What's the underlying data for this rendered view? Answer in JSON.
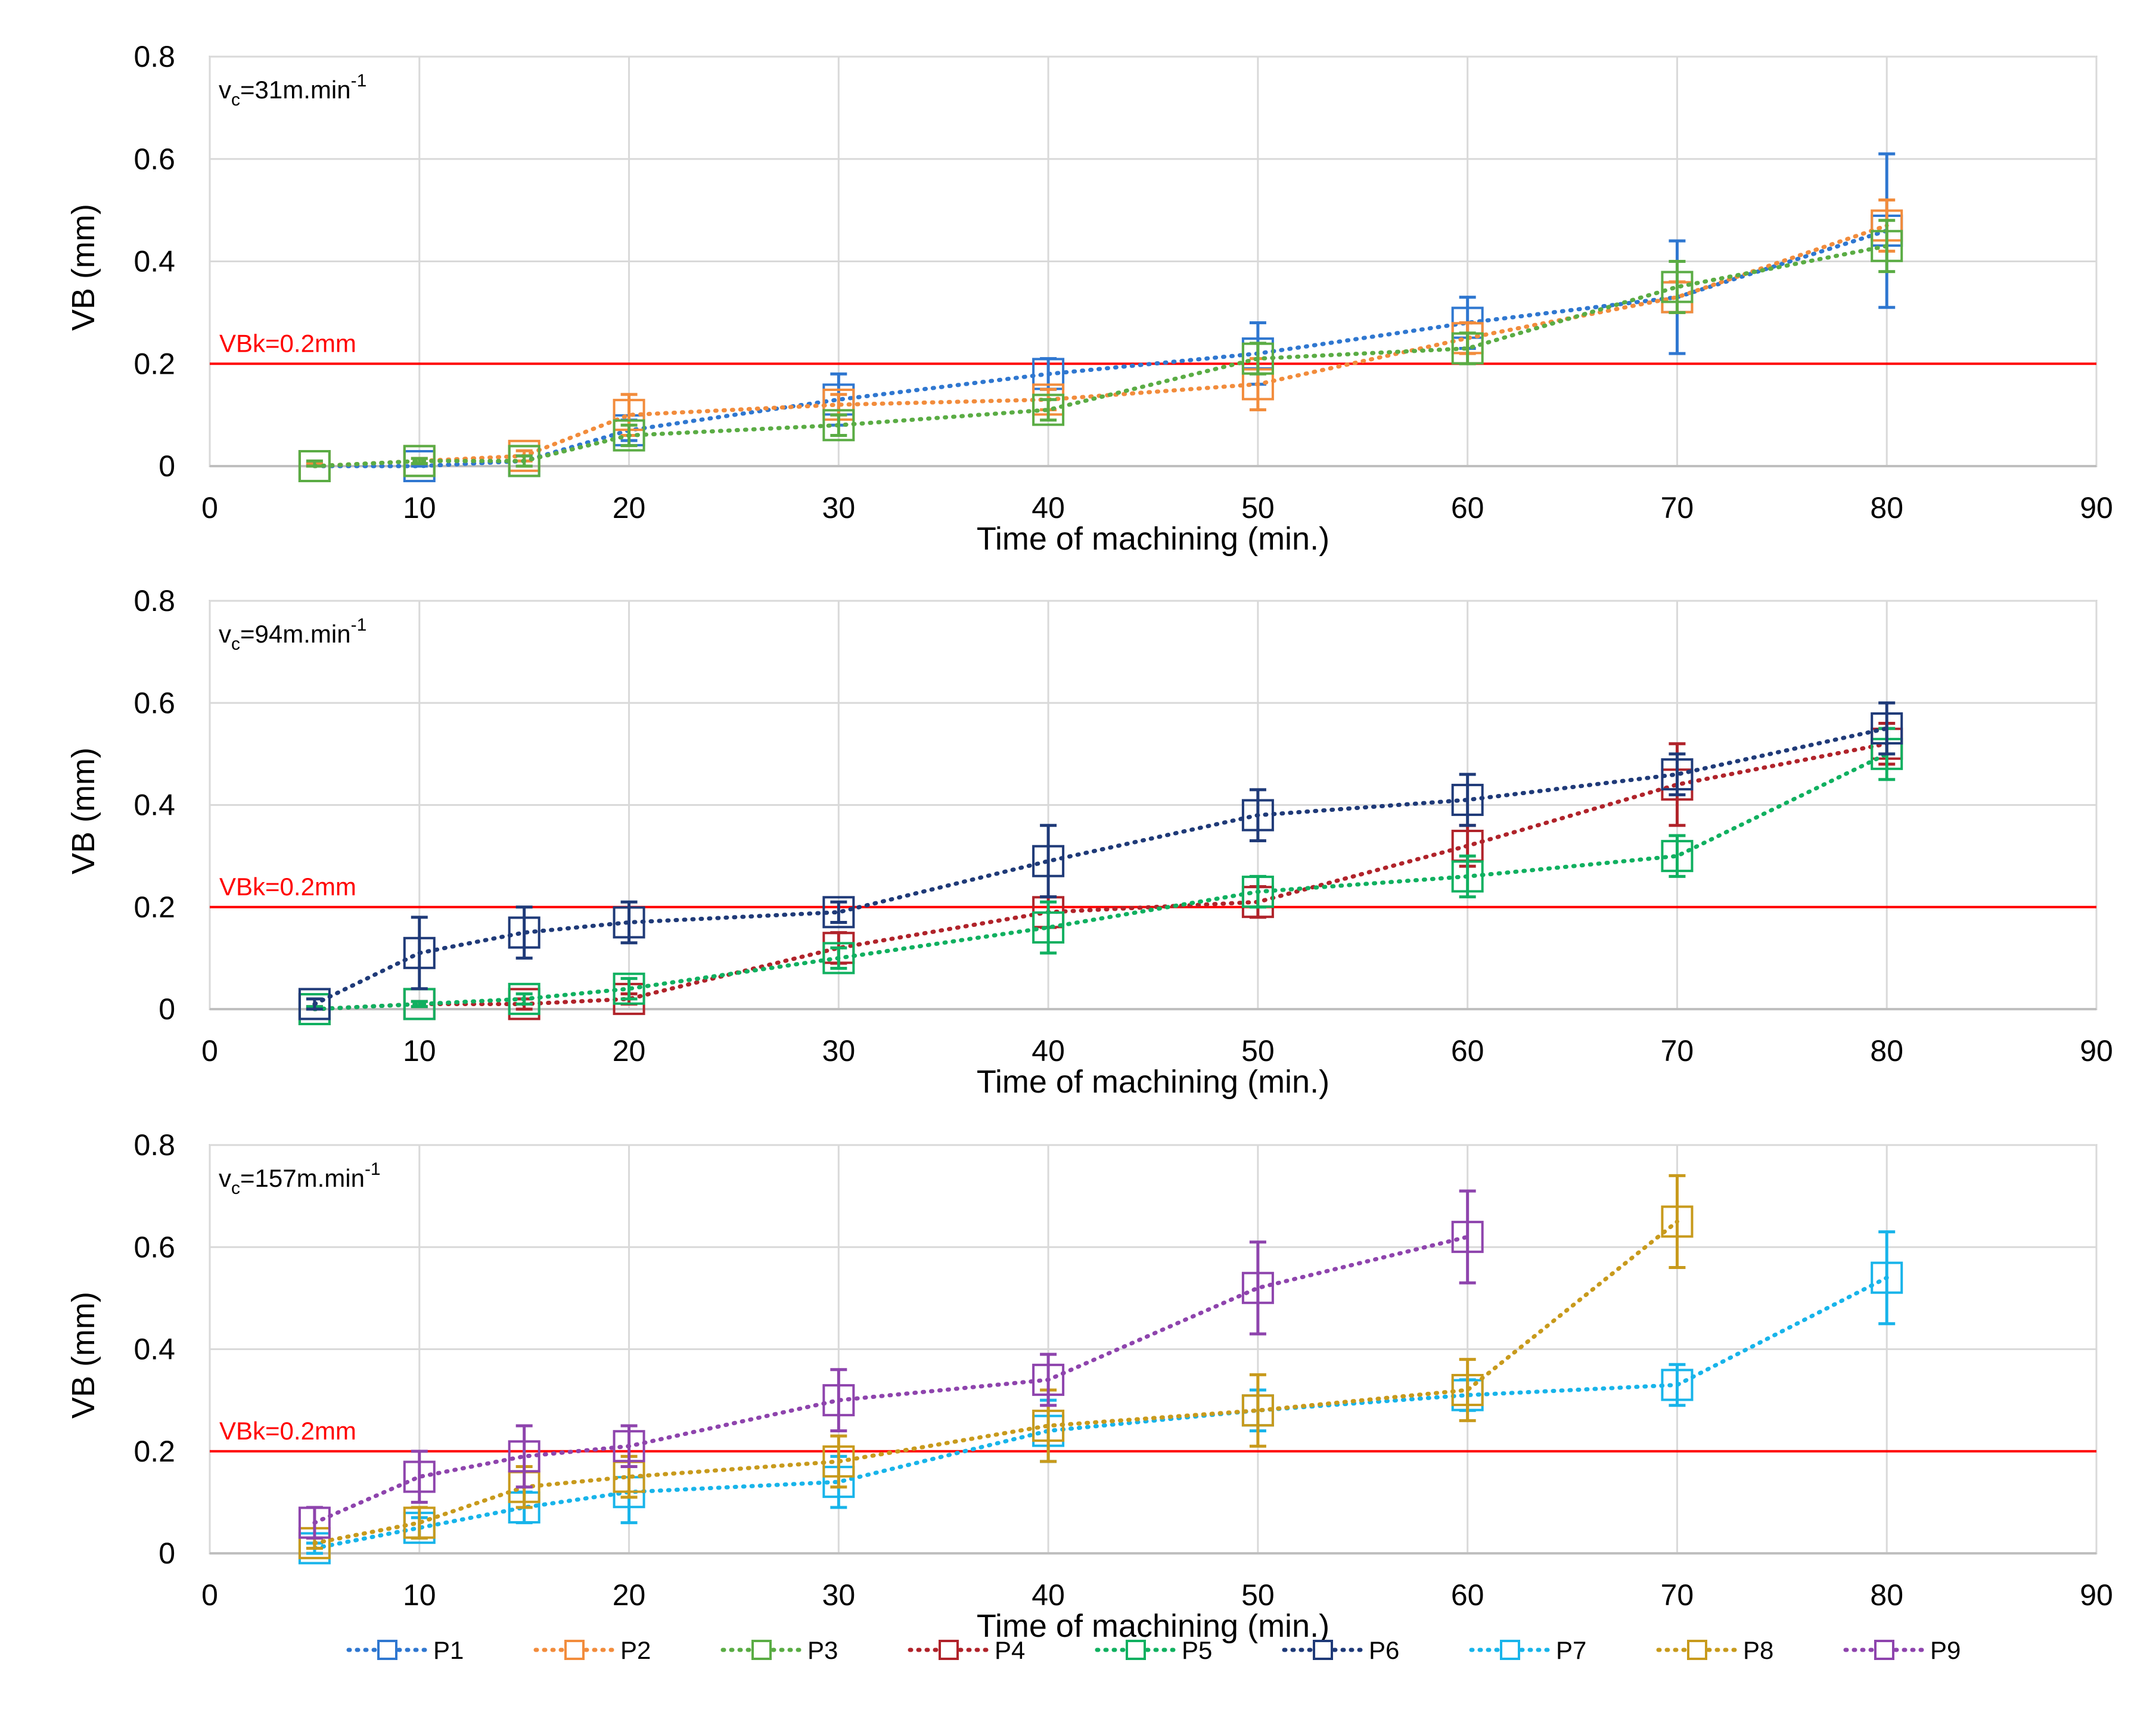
{
  "chart_data": [
    {
      "type": "line",
      "speed_label": "v",
      "speed_sub": "c",
      "speed_value": "=31m.min",
      "speed_sup": "-1",
      "xlabel": "Time of machining (min.)",
      "ylabel": "VB (mm)",
      "xlim": [
        0,
        90
      ],
      "ylim": [
        0,
        0.8
      ],
      "xticks": [
        "0",
        "10",
        "20",
        "30",
        "40",
        "50",
        "60",
        "70",
        "80",
        "90"
      ],
      "yticks": [
        "0",
        "0.2",
        "0.4",
        "0.6",
        "0.8"
      ],
      "threshold": {
        "value": 0.2,
        "label": "VBk=0.2mm",
        "color": "#ff0000"
      },
      "series": [
        {
          "name": "P1",
          "color": "#2f77d0",
          "x": [
            5,
            10,
            15,
            20,
            30,
            40,
            50,
            60,
            70,
            80
          ],
          "values": [
            0.0,
            0.0,
            0.01,
            0.07,
            0.13,
            0.18,
            0.22,
            0.28,
            0.33,
            0.46
          ],
          "err": [
            0.005,
            0.005,
            0.01,
            0.02,
            0.05,
            0.03,
            0.06,
            0.05,
            0.11,
            0.15
          ]
        },
        {
          "name": "P2",
          "color": "#f28c3c",
          "x": [
            5,
            10,
            15,
            20,
            30,
            40,
            50,
            60,
            70,
            80
          ],
          "values": [
            0.0,
            0.01,
            0.02,
            0.1,
            0.12,
            0.13,
            0.16,
            0.25,
            0.33,
            0.47
          ],
          "err": [
            0.005,
            0.005,
            0.01,
            0.04,
            0.02,
            0.02,
            0.05,
            0.03,
            0.03,
            0.05
          ]
        },
        {
          "name": "P3",
          "color": "#5aac44",
          "x": [
            5,
            10,
            15,
            20,
            30,
            40,
            50,
            60,
            70,
            80
          ],
          "values": [
            0.0,
            0.01,
            0.01,
            0.06,
            0.08,
            0.11,
            0.21,
            0.23,
            0.35,
            0.43
          ],
          "err": [
            0.01,
            0.005,
            0.01,
            0.02,
            0.02,
            0.02,
            0.03,
            0.03,
            0.05,
            0.05
          ]
        }
      ]
    },
    {
      "type": "line",
      "speed_label": "v",
      "speed_sub": "c",
      "speed_value": "=94m.min",
      "speed_sup": "-1",
      "xlabel": "Time of machining (min.)",
      "ylabel": "VB (mm)",
      "xlim": [
        0,
        90
      ],
      "ylim": [
        0,
        0.8
      ],
      "xticks": [
        "0",
        "10",
        "20",
        "30",
        "40",
        "50",
        "60",
        "70",
        "80",
        "90"
      ],
      "yticks": [
        "0",
        "0.2",
        "0.4",
        "0.6",
        "0.8"
      ],
      "threshold": {
        "value": 0.2,
        "label": "VBk=0.2mm",
        "color": "#ff0000"
      },
      "series": [
        {
          "name": "P4",
          "color": "#b0232a",
          "x": [
            5,
            10,
            15,
            20,
            30,
            40,
            50,
            60,
            70,
            80
          ],
          "values": [
            0.0,
            0.01,
            0.01,
            0.02,
            0.12,
            0.19,
            0.21,
            0.32,
            0.44,
            0.52
          ],
          "err": [
            0.005,
            0.005,
            0.01,
            0.01,
            0.03,
            0.03,
            0.03,
            0.04,
            0.08,
            0.04
          ]
        },
        {
          "name": "P5",
          "color": "#10b060",
          "x": [
            5,
            10,
            15,
            20,
            30,
            40,
            50,
            60,
            70,
            80
          ],
          "values": [
            0.0,
            0.01,
            0.02,
            0.04,
            0.1,
            0.16,
            0.23,
            0.26,
            0.3,
            0.5
          ],
          "err": [
            0.005,
            0.005,
            0.01,
            0.02,
            0.02,
            0.05,
            0.03,
            0.04,
            0.04,
            0.05
          ]
        },
        {
          "name": "P6",
          "color": "#1f3a78",
          "x": [
            5,
            10,
            15,
            20,
            30,
            40,
            50,
            60,
            70,
            80
          ],
          "values": [
            0.01,
            0.11,
            0.15,
            0.17,
            0.19,
            0.29,
            0.38,
            0.41,
            0.46,
            0.55
          ],
          "err": [
            0.01,
            0.07,
            0.05,
            0.04,
            0.02,
            0.07,
            0.05,
            0.05,
            0.04,
            0.05
          ]
        }
      ]
    },
    {
      "type": "line",
      "speed_label": "v",
      "speed_sub": "c",
      "speed_value": "=157m.min",
      "speed_sup": "-1",
      "xlabel": "Time of machining (min.)",
      "ylabel": "VB (mm)",
      "xlim": [
        0,
        90
      ],
      "ylim": [
        0,
        0.8
      ],
      "xticks": [
        "0",
        "10",
        "20",
        "30",
        "40",
        "50",
        "60",
        "70",
        "80",
        "90"
      ],
      "yticks": [
        "0",
        "0.2",
        "0.4",
        "0.6",
        "0.8"
      ],
      "threshold": {
        "value": 0.2,
        "label": "VBk=0.2mm",
        "color": "#ff0000"
      },
      "series": [
        {
          "name": "P7",
          "color": "#18b4ea",
          "x": [
            5,
            10,
            15,
            20,
            30,
            40,
            50,
            60,
            70,
            80
          ],
          "values": [
            0.01,
            0.05,
            0.09,
            0.12,
            0.14,
            0.24,
            0.28,
            0.31,
            0.33,
            0.54
          ],
          "err": [
            0.01,
            0.02,
            0.03,
            0.06,
            0.05,
            0.06,
            0.04,
            0.03,
            0.04,
            0.09
          ]
        },
        {
          "name": "P8",
          "color": "#c89a1c",
          "x": [
            5,
            10,
            15,
            20,
            30,
            40,
            50,
            60,
            70
          ],
          "values": [
            0.02,
            0.06,
            0.13,
            0.15,
            0.18,
            0.25,
            0.28,
            0.32,
            0.65
          ],
          "err": [
            0.01,
            0.03,
            0.04,
            0.04,
            0.05,
            0.07,
            0.07,
            0.06,
            0.09
          ]
        },
        {
          "name": "P9",
          "color": "#8e44ad",
          "x": [
            5,
            10,
            15,
            20,
            30,
            40,
            50,
            60
          ],
          "values": [
            0.06,
            0.15,
            0.19,
            0.21,
            0.3,
            0.34,
            0.52,
            0.62
          ],
          "err": [
            0.03,
            0.05,
            0.06,
            0.04,
            0.06,
            0.05,
            0.09,
            0.09
          ]
        }
      ]
    }
  ],
  "legend": [
    {
      "name": "P1",
      "color": "#2f77d0"
    },
    {
      "name": "P2",
      "color": "#f28c3c"
    },
    {
      "name": "P3",
      "color": "#5aac44"
    },
    {
      "name": "P4",
      "color": "#b0232a"
    },
    {
      "name": "P5",
      "color": "#10b060"
    },
    {
      "name": "P6",
      "color": "#1f3a78"
    },
    {
      "name": "P7",
      "color": "#18b4ea"
    },
    {
      "name": "P8",
      "color": "#c89a1c"
    },
    {
      "name": "P9",
      "color": "#8e44ad"
    }
  ]
}
